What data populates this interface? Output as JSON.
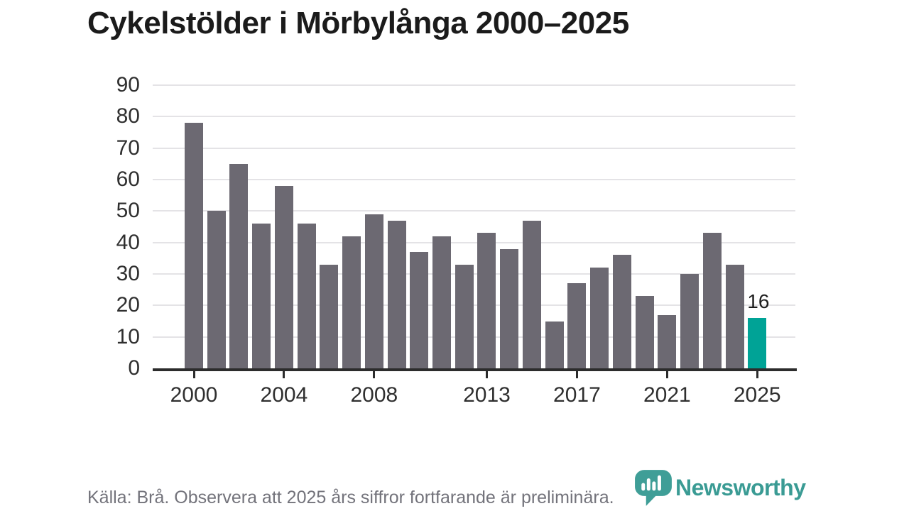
{
  "title": "Cykelstölder i Mörbylånga 2000–2025",
  "source_note": "Källa: Brå. Observera att 2025 års siffror fortfarande är preliminära.",
  "logo": {
    "name": "Newsworthy"
  },
  "colors": {
    "bar_default": "#6c6972",
    "bar_highlight": "#00a396",
    "axis": "#2c2c2c",
    "gridline": "#e4e3e6",
    "title_text": "#1b1b1b",
    "axis_text": "#2f2f2f",
    "source_text": "#73737b",
    "logo_teal": "#3f9e97",
    "logo_text": "#3a9b94",
    "bar_label_text": "#1d1d1d"
  },
  "chart_data": {
    "type": "bar",
    "title": "Cykelstölder i Mörbylånga 2000–2025",
    "x": [
      2000,
      2001,
      2002,
      2003,
      2004,
      2005,
      2006,
      2007,
      2008,
      2009,
      2010,
      2011,
      2012,
      2013,
      2014,
      2015,
      2016,
      2017,
      2018,
      2019,
      2020,
      2021,
      2022,
      2023,
      2024,
      2025
    ],
    "values": [
      78,
      50,
      65,
      46,
      58,
      46,
      33,
      42,
      49,
      47,
      37,
      42,
      33,
      43,
      38,
      47,
      15,
      27,
      32,
      36,
      23,
      17,
      30,
      43,
      33,
      16
    ],
    "highlight_year": 2025,
    "highlight_label": "16",
    "xlabel": "",
    "ylabel": "",
    "ylim": [
      0,
      90
    ],
    "yticks": [
      0,
      10,
      20,
      30,
      40,
      50,
      60,
      70,
      80,
      90
    ],
    "xticks": [
      2000,
      2004,
      2008,
      2013,
      2017,
      2021,
      2025
    ],
    "grid": "horizontal",
    "legend": "none"
  }
}
